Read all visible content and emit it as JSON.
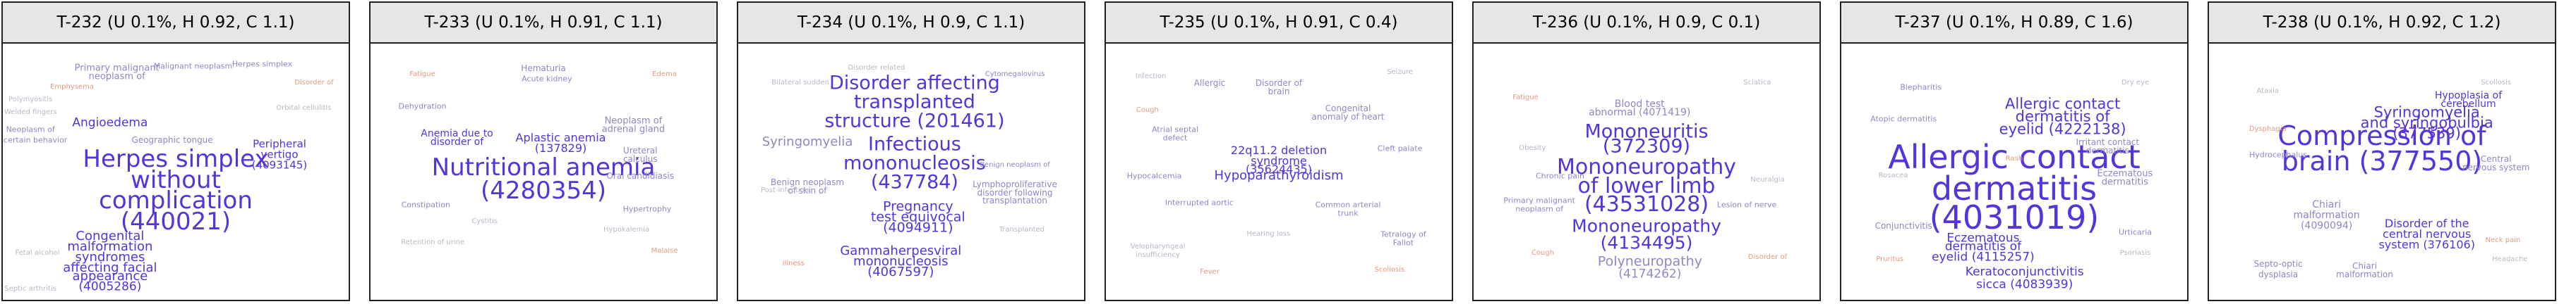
{
  "colors": {
    "high": "#5533dd",
    "mid": "#8f86c8",
    "low": "#b8b8c8",
    "warm": "#e69a80"
  },
  "panels": [
    {
      "title": "T-232 (U 0.1%, H 0.92, C 1.1)",
      "terms": [
        {
          "text": "Herpes simplex",
          "size": 34,
          "color": "high"
        },
        {
          "text": "without",
          "size": 34,
          "color": "high"
        },
        {
          "text": "complication",
          "size": 34,
          "color": "high"
        },
        {
          "text": "(440021)",
          "size": 34,
          "color": "high"
        },
        {
          "text": "Angioedema",
          "size": 17,
          "color": "high"
        },
        {
          "text": "Congenital",
          "size": 18,
          "color": "high"
        },
        {
          "text": "malformation",
          "size": 18,
          "color": "high"
        },
        {
          "text": "syndromes",
          "size": 18,
          "color": "high"
        },
        {
          "text": "affecting facial",
          "size": 18,
          "color": "high"
        },
        {
          "text": "appearance",
          "size": 18,
          "color": "high"
        },
        {
          "text": "(4005286)",
          "size": 17,
          "color": "high"
        },
        {
          "text": "Peripheral",
          "size": 15,
          "color": "high"
        },
        {
          "text": "vertigo",
          "size": 15,
          "color": "high"
        },
        {
          "text": "(4093145)",
          "size": 15,
          "color": "high"
        },
        {
          "text": "Primary malignant",
          "size": 13,
          "color": "mid"
        },
        {
          "text": "neoplasm of",
          "size": 13,
          "color": "mid"
        },
        {
          "text": "Malignant neoplasm",
          "size": 11,
          "color": "mid"
        },
        {
          "text": "Herpes simplex",
          "size": 11,
          "color": "mid"
        },
        {
          "text": "Geographic tongue",
          "size": 12,
          "color": "mid"
        },
        {
          "text": "Neoplasm of",
          "size": 11,
          "color": "mid"
        },
        {
          "text": "uncertain behavior",
          "size": 11,
          "color": "mid"
        },
        {
          "text": "Polymyositis",
          "size": 10,
          "color": "low"
        },
        {
          "text": "Welded fingers",
          "size": 10,
          "color": "low"
        },
        {
          "text": "Orbital cellulitis",
          "size": 10,
          "color": "low"
        },
        {
          "text": "Septic arthritis",
          "size": 10,
          "color": "low"
        },
        {
          "text": "Fetal alcohol",
          "size": 10,
          "color": "low"
        },
        {
          "text": "Emphysema",
          "size": 10,
          "color": "warm"
        },
        {
          "text": "Disorder of",
          "size": 10,
          "color": "warm"
        }
      ]
    },
    {
      "title": "T-233 (U 0.1%, H 0.91, C 1.1)",
      "terms": [
        {
          "text": "Nutritional anemia",
          "size": 34,
          "color": "high"
        },
        {
          "text": "(4280354)",
          "size": 34,
          "color": "high"
        },
        {
          "text": "Aplastic anemia",
          "size": 16,
          "color": "high"
        },
        {
          "text": "(137829)",
          "size": 16,
          "color": "high"
        },
        {
          "text": "Anemia due to",
          "size": 14,
          "color": "high"
        },
        {
          "text": "disorder of",
          "size": 14,
          "color": "high"
        },
        {
          "text": "Neoplasm of",
          "size": 13,
          "color": "mid"
        },
        {
          "text": "adrenal gland",
          "size": 13,
          "color": "mid"
        },
        {
          "text": "Ureteral",
          "size": 12,
          "color": "mid"
        },
        {
          "text": "calculus",
          "size": 12,
          "color": "mid"
        },
        {
          "text": "Oral candidiasis",
          "size": 12,
          "color": "mid"
        },
        {
          "text": "Hematuria",
          "size": 12,
          "color": "mid"
        },
        {
          "text": "Acute kidney",
          "size": 11,
          "color": "mid"
        },
        {
          "text": "Hypertrophy",
          "size": 11,
          "color": "mid"
        },
        {
          "text": "Dehydration",
          "size": 11,
          "color": "mid"
        },
        {
          "text": "Constipation",
          "size": 11,
          "color": "mid"
        },
        {
          "text": "Cystitis",
          "size": 10,
          "color": "low"
        },
        {
          "text": "Hypokalemia",
          "size": 10,
          "color": "low"
        },
        {
          "text": "Retention of urine",
          "size": 10,
          "color": "low"
        },
        {
          "text": "Fatigue",
          "size": 10,
          "color": "warm"
        },
        {
          "text": "Malaise",
          "size": 10,
          "color": "warm"
        },
        {
          "text": "Edema",
          "size": 10,
          "color": "warm"
        }
      ]
    },
    {
      "title": "T-234 (U 0.1%, H 0.9, C 1.1)",
      "terms": [
        {
          "text": "Disorder affecting",
          "size": 27,
          "color": "high"
        },
        {
          "text": "transplanted",
          "size": 27,
          "color": "high"
        },
        {
          "text": "structure (201461)",
          "size": 27,
          "color": "high"
        },
        {
          "text": "Infectious",
          "size": 27,
          "color": "high"
        },
        {
          "text": "mononucleosis",
          "size": 27,
          "color": "high"
        },
        {
          "text": "(437784)",
          "size": 27,
          "color": "high"
        },
        {
          "text": "Pregnancy",
          "size": 19,
          "color": "high"
        },
        {
          "text": "test equivocal",
          "size": 19,
          "color": "high"
        },
        {
          "text": "(4094911)",
          "size": 19,
          "color": "high"
        },
        {
          "text": "Gammaherpesviral",
          "size": 18,
          "color": "high"
        },
        {
          "text": "mononucleosis",
          "size": 18,
          "color": "high"
        },
        {
          "text": "(4067597)",
          "size": 18,
          "color": "high"
        },
        {
          "text": "Syringomyelia",
          "size": 18,
          "color": "mid"
        },
        {
          "text": "Benign neoplasm",
          "size": 12,
          "color": "mid"
        },
        {
          "text": "of skin of",
          "size": 12,
          "color": "mid"
        },
        {
          "text": "Lymphoproliferative",
          "size": 12,
          "color": "mid"
        },
        {
          "text": "disorder following",
          "size": 12,
          "color": "mid"
        },
        {
          "text": "transplantation",
          "size": 12,
          "color": "mid"
        },
        {
          "text": "Benign neoplasm of",
          "size": 10,
          "color": "mid"
        },
        {
          "text": "Cytomegalovirus",
          "size": 10,
          "color": "mid"
        },
        {
          "text": "Disorder related",
          "size": 10,
          "color": "low"
        },
        {
          "text": "Post-infectious",
          "size": 10,
          "color": "low"
        },
        {
          "text": "Bilateral sudden",
          "size": 10,
          "color": "low"
        },
        {
          "text": "Transplanted",
          "size": 10,
          "color": "low"
        },
        {
          "text": "Illness",
          "size": 10,
          "color": "warm"
        }
      ]
    },
    {
      "title": "T-235 (U 0.1%, H 0.91, C 0.4)",
      "terms": [
        {
          "text": "Hypoparathyroidism",
          "size": 18,
          "color": "high"
        },
        {
          "text": "22q11.2 deletion",
          "size": 16,
          "color": "high"
        },
        {
          "text": "syndrome",
          "size": 16,
          "color": "high"
        },
        {
          "text": "(35624435)",
          "size": 16,
          "color": "high"
        },
        {
          "text": "Allergic",
          "size": 12,
          "color": "mid"
        },
        {
          "text": "Disorder of",
          "size": 12,
          "color": "mid"
        },
        {
          "text": "brain",
          "size": 12,
          "color": "mid"
        },
        {
          "text": "Congenital",
          "size": 12,
          "color": "mid"
        },
        {
          "text": "anomaly of heart",
          "size": 12,
          "color": "mid"
        },
        {
          "text": "Atrial septal",
          "size": 11,
          "color": "mid"
        },
        {
          "text": "defect",
          "size": 11,
          "color": "mid"
        },
        {
          "text": "Interrupted aortic",
          "size": 11,
          "color": "mid"
        },
        {
          "text": "Common arterial",
          "size": 11,
          "color": "mid"
        },
        {
          "text": "trunk",
          "size": 11,
          "color": "mid"
        },
        {
          "text": "Cleft palate",
          "size": 11,
          "color": "mid"
        },
        {
          "text": "Hypocalcemia",
          "size": 11,
          "color": "mid"
        },
        {
          "text": "Tetralogy of",
          "size": 11,
          "color": "mid"
        },
        {
          "text": "Fallot",
          "size": 11,
          "color": "mid"
        },
        {
          "text": "Velopharyngeal",
          "size": 10,
          "color": "low"
        },
        {
          "text": "insufficiency",
          "size": 10,
          "color": "low"
        },
        {
          "text": "Hearing loss",
          "size": 10,
          "color": "low"
        },
        {
          "text": "Seizure",
          "size": 10,
          "color": "low"
        },
        {
          "text": "Infection",
          "size": 10,
          "color": "low"
        },
        {
          "text": "Cough",
          "size": 10,
          "color": "warm"
        },
        {
          "text": "Fever",
          "size": 10,
          "color": "warm"
        },
        {
          "text": "Scoliosis",
          "size": 10,
          "color": "warm"
        }
      ]
    },
    {
      "title": "T-236 (U 0.1%, H 0.9, C 0.1)",
      "terms": [
        {
          "text": "Mononeuritis",
          "size": 27,
          "color": "high"
        },
        {
          "text": "(372309)",
          "size": 27,
          "color": "high"
        },
        {
          "text": "Mononeuropathy",
          "size": 30,
          "color": "high"
        },
        {
          "text": "of lower limb",
          "size": 30,
          "color": "high"
        },
        {
          "text": "(43531028)",
          "size": 30,
          "color": "high"
        },
        {
          "text": "Mononeuropathy",
          "size": 25,
          "color": "high"
        },
        {
          "text": "(4134495)",
          "size": 25,
          "color": "high"
        },
        {
          "text": "Polyneuropathy",
          "size": 19,
          "color": "mid"
        },
        {
          "text": "(4174262)",
          "size": 17,
          "color": "mid"
        },
        {
          "text": "Blood test",
          "size": 14,
          "color": "mid"
        },
        {
          "text": "abnormal (4071419)",
          "size": 14,
          "color": "mid"
        },
        {
          "text": "Primary malignant",
          "size": 11,
          "color": "mid"
        },
        {
          "text": "neoplasm of",
          "size": 11,
          "color": "mid"
        },
        {
          "text": "Lesion of nerve",
          "size": 11,
          "color": "mid"
        },
        {
          "text": "Chronic pain",
          "size": 11,
          "color": "mid"
        },
        {
          "text": "Neuralgia",
          "size": 10,
          "color": "low"
        },
        {
          "text": "Sciatica",
          "size": 10,
          "color": "low"
        },
        {
          "text": "Obesity",
          "size": 10,
          "color": "low"
        },
        {
          "text": "Cough",
          "size": 10,
          "color": "warm"
        },
        {
          "text": "Fatigue",
          "size": 10,
          "color": "warm"
        },
        {
          "text": "Disorder of",
          "size": 10,
          "color": "warm"
        }
      ]
    },
    {
      "title": "T-237 (U 0.1%, H 0.89, C 1.6)",
      "terms": [
        {
          "text": "Allergic contact",
          "size": 46,
          "color": "high"
        },
        {
          "text": "dermatitis",
          "size": 46,
          "color": "high"
        },
        {
          "text": "(4031019)",
          "size": 46,
          "color": "high"
        },
        {
          "text": "Allergic contact",
          "size": 21,
          "color": "high"
        },
        {
          "text": "dermatitis of",
          "size": 21,
          "color": "high"
        },
        {
          "text": "eyelid (4222138)",
          "size": 21,
          "color": "high"
        },
        {
          "text": "Eczematous",
          "size": 17,
          "color": "high"
        },
        {
          "text": "dermatitis of",
          "size": 17,
          "color": "high"
        },
        {
          "text": "eyelid (4115257)",
          "size": 17,
          "color": "high"
        },
        {
          "text": "Keratoconjunctivitis",
          "size": 17,
          "color": "high"
        },
        {
          "text": "sicca (4083939)",
          "size": 17,
          "color": "high"
        },
        {
          "text": "Eczematous",
          "size": 13,
          "color": "mid"
        },
        {
          "text": "dermatitis",
          "size": 13,
          "color": "mid"
        },
        {
          "text": "Irritant contact",
          "size": 12,
          "color": "mid"
        },
        {
          "text": "dermatitis",
          "size": 12,
          "color": "mid"
        },
        {
          "text": "Conjunctivitis",
          "size": 12,
          "color": "mid"
        },
        {
          "text": "Blepharitis",
          "size": 11,
          "color": "mid"
        },
        {
          "text": "Atopic dermatitis",
          "size": 11,
          "color": "mid"
        },
        {
          "text": "Urticaria",
          "size": 11,
          "color": "mid"
        },
        {
          "text": "Dry eye",
          "size": 10,
          "color": "low"
        },
        {
          "text": "Rosacea",
          "size": 10,
          "color": "low"
        },
        {
          "text": "Psoriasis",
          "size": 10,
          "color": "low"
        },
        {
          "text": "Pruritus",
          "size": 10,
          "color": "warm"
        },
        {
          "text": "Rash",
          "size": 10,
          "color": "warm"
        }
      ]
    },
    {
      "title": "T-238 (U 0.1%, H 0.92, C 1.2)",
      "terms": [
        {
          "text": "Compression of",
          "size": 38,
          "color": "high"
        },
        {
          "text": "brain (377550)",
          "size": 38,
          "color": "high"
        },
        {
          "text": "Syringomyelia",
          "size": 21,
          "color": "high"
        },
        {
          "text": "and syringobulbia",
          "size": 21,
          "color": "high"
        },
        {
          "text": "(377539)",
          "size": 21,
          "color": "high"
        },
        {
          "text": "Hypoplasia of",
          "size": 14,
          "color": "high"
        },
        {
          "text": "cerebellum",
          "size": 14,
          "color": "high"
        },
        {
          "text": "Disorder of the",
          "size": 16,
          "color": "high"
        },
        {
          "text": "central nervous",
          "size": 16,
          "color": "high"
        },
        {
          "text": "system (376106)",
          "size": 16,
          "color": "high"
        },
        {
          "text": "Chiari",
          "size": 14,
          "color": "mid"
        },
        {
          "text": "malformation",
          "size": 14,
          "color": "mid"
        },
        {
          "text": "(4090094)",
          "size": 14,
          "color": "mid"
        },
        {
          "text": "Central",
          "size": 12,
          "color": "mid"
        },
        {
          "text": "nervous system",
          "size": 12,
          "color": "mid"
        },
        {
          "text": "Septo-optic",
          "size": 12,
          "color": "mid"
        },
        {
          "text": "dysplasia",
          "size": 12,
          "color": "mid"
        },
        {
          "text": "Chiari",
          "size": 12,
          "color": "mid"
        },
        {
          "text": "malformation",
          "size": 12,
          "color": "mid"
        },
        {
          "text": "Hydrocephalus",
          "size": 11,
          "color": "mid"
        },
        {
          "text": "Scoliosis",
          "size": 10,
          "color": "low"
        },
        {
          "text": "Headache",
          "size": 10,
          "color": "low"
        },
        {
          "text": "Ataxia",
          "size": 10,
          "color": "low"
        },
        {
          "text": "Dysphagia",
          "size": 10,
          "color": "warm"
        },
        {
          "text": "Neck pain",
          "size": 10,
          "color": "warm"
        }
      ]
    }
  ]
}
